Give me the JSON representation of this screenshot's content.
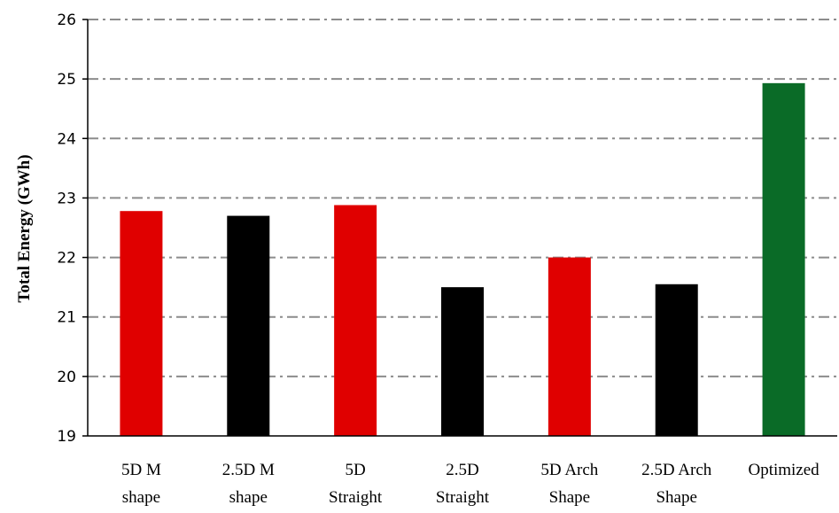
{
  "chart_data": {
    "type": "bar",
    "ylabel": "Total Energy (GWh)",
    "xlabel": "",
    "title": "",
    "ylim": [
      19,
      26
    ],
    "yticks": [
      19,
      20,
      21,
      22,
      23,
      24,
      25,
      26
    ],
    "grid": true,
    "categories": [
      [
        "5D M",
        "shape"
      ],
      [
        "2.5D M",
        "shape"
      ],
      [
        "5D",
        "Straight"
      ],
      [
        "2.5D",
        "Straight"
      ],
      [
        "5D Arch",
        "Shape"
      ],
      [
        "2.5D Arch",
        "Shape"
      ],
      [
        "Optimized"
      ]
    ],
    "values": [
      22.78,
      22.7,
      22.88,
      21.5,
      22.0,
      21.55,
      24.93
    ],
    "colors": [
      "#e00000",
      "#000000",
      "#e00000",
      "#000000",
      "#e00000",
      "#000000",
      "#0a6b27"
    ]
  }
}
